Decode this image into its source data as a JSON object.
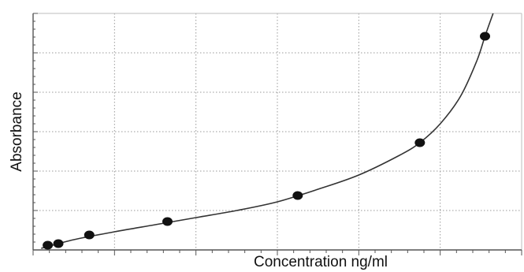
{
  "chart_data": {
    "type": "scatter",
    "title": "",
    "xlabel": "Concentration ng/ml",
    "ylabel": "Absorbance",
    "xlim": [
      0,
      6
    ],
    "ylim": [
      0,
      3
    ],
    "grid": true,
    "x_ticks": [
      0,
      1,
      2,
      3,
      4,
      5,
      6
    ],
    "y_ticks": [
      0,
      0.5,
      1,
      1.5,
      2,
      2.5,
      3
    ],
    "series": [
      {
        "points": [
          {
            "x": 0.18,
            "y": 0.06
          },
          {
            "x": 0.31,
            "y": 0.08
          },
          {
            "x": 0.69,
            "y": 0.19
          },
          {
            "x": 1.65,
            "y": 0.36
          },
          {
            "x": 3.25,
            "y": 0.69
          },
          {
            "x": 4.75,
            "y": 1.36
          },
          {
            "x": 5.55,
            "y": 2.71
          }
        ]
      }
    ],
    "curve": [
      {
        "x": 0.1,
        "y": 0.02
      },
      {
        "x": 0.5,
        "y": 0.13
      },
      {
        "x": 1.0,
        "y": 0.23
      },
      {
        "x": 1.5,
        "y": 0.32
      },
      {
        "x": 2.0,
        "y": 0.41
      },
      {
        "x": 2.5,
        "y": 0.5
      },
      {
        "x": 3.0,
        "y": 0.61
      },
      {
        "x": 3.5,
        "y": 0.77
      },
      {
        "x": 4.0,
        "y": 0.95
      },
      {
        "x": 4.5,
        "y": 1.2
      },
      {
        "x": 4.75,
        "y": 1.36
      },
      {
        "x": 5.0,
        "y": 1.6
      },
      {
        "x": 5.25,
        "y": 1.95
      },
      {
        "x": 5.45,
        "y": 2.4
      },
      {
        "x": 5.55,
        "y": 2.71
      },
      {
        "x": 5.65,
        "y": 3.0
      }
    ],
    "colors": {
      "point": "#111111",
      "curve": "#333333",
      "grid": "#9a9a9a",
      "axis": "#555555"
    }
  }
}
